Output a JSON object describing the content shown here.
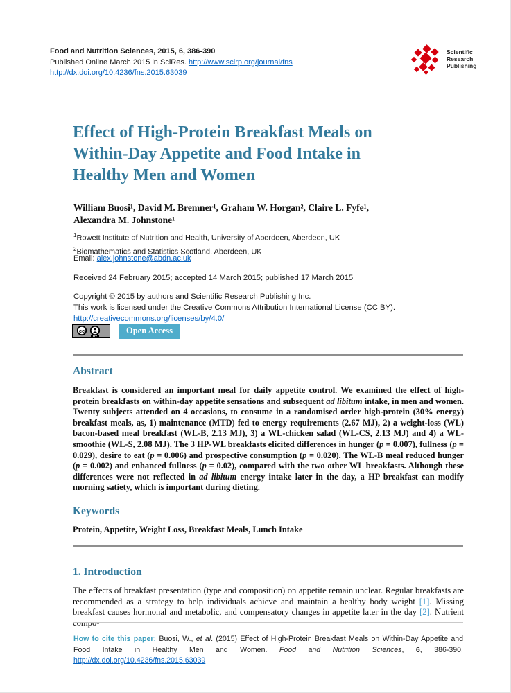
{
  "colors": {
    "teal_heading": "#337A9C",
    "teal_footer_label": "#3B9DBD",
    "link_blue": "#0563C1",
    "reference_blue": "#4A9FD0",
    "logo_red": "#D6000D",
    "open_access_bg": "#4FACCB",
    "rule_gray": "#8F8F8F"
  },
  "header": {
    "journal_line": "Food and Nutrition Sciences, 2015, 6, 386-390",
    "published_prefix": "Published Online March 2015 in SciRes. ",
    "journal_link": "http://www.scirp.org/journal/fns",
    "doi_link": "http://dx.doi.org/10.4236/fns.2015.63039",
    "logo_lines": [
      "Scientific",
      "Research",
      "Publishing"
    ]
  },
  "article": {
    "title_lines": [
      "Effect of High-Protein Breakfast Meals on",
      "Within-Day Appetite and Food Intake in",
      "Healthy Men and Women"
    ],
    "author_lines": [
      "William Buosi¹, David M. Bremner¹, Graham W. Horgan², Claire L. Fyfe¹,",
      "Alexandra M. Johnstone¹"
    ],
    "affiliations": [
      {
        "sup": "1",
        "text": "Rowett Institute of Nutrition and Health, University of Aberdeen, Aberdeen, UK"
      },
      {
        "sup": "2",
        "text": "Biomathematics and Statistics Scotland, Aberdeen, UK"
      }
    ],
    "email_label": "Email: ",
    "email": "alex.johnstone@abdn.ac.uk",
    "dates_line": "Received 24 February 2015; accepted 14 March 2015; published 17 March 2015",
    "copyright_line1": "Copyright © 2015 by authors and Scientific Research Publishing Inc.",
    "copyright_line2": "This work is licensed under the Creative Commons Attribution International License (CC BY).",
    "license_link": "http://creativecommons.org/licenses/by/4.0/",
    "cc_cc": "cc",
    "cc_by": "BY",
    "open_access_label": "Open Access"
  },
  "abstract": {
    "heading": "Abstract",
    "rich": [
      {
        "t": "Breakfast is considered an important meal for daily appetite control. We examined the effect of high-protein breakfasts on within-day appetite sensations and subsequent "
      },
      {
        "t": "ad libitum",
        "i": true
      },
      {
        "t": " intake, in men and women. Twenty subjects attended on 4 occasions, to consume in a randomised order high-protein (30% energy) breakfast meals, as, 1) maintenance (MTD) fed to energy requirements (2.67 MJ), 2) a weight-loss (WL) bacon-based meal breakfast (WL-B, 2.13 MJ), 3) a WL-chicken salad (WL-CS, 2.13 MJ) and 4) a WL-smoothie (WL-S, 2.08 MJ). The 3 HP-WL breakfasts elicited differences in hunger ("
      },
      {
        "t": "p",
        "i": true
      },
      {
        "t": " = 0.007), fullness ("
      },
      {
        "t": "p",
        "i": true
      },
      {
        "t": " = 0.029), desire to eat ("
      },
      {
        "t": "p",
        "i": true
      },
      {
        "t": " = 0.006) and prospective consumption ("
      },
      {
        "t": "p",
        "i": true
      },
      {
        "t": " = 0.020). The WL-B meal reduced hunger ("
      },
      {
        "t": "p",
        "i": true
      },
      {
        "t": " = 0.002) and enhanced fullness ("
      },
      {
        "t": "p",
        "i": true
      },
      {
        "t": " = 0.02), compared with the two other WL breakfasts. Although these differences were not reflected in "
      },
      {
        "t": "ad libitum",
        "i": true
      },
      {
        "t": " energy intake later in the day, a HP breakfast can modify morning satiety, which is important during dieting."
      }
    ]
  },
  "keywords": {
    "heading": "Keywords",
    "text": "Protein, Appetite, Weight Loss, Breakfast Meals, Lunch Intake"
  },
  "introduction": {
    "heading": "1. Introduction",
    "rich": [
      {
        "t": "The effects of breakfast presentation (type and composition) on appetite remain unclear. Regular breakfasts are recommended as a strategy to help individuals achieve and maintain a healthy body weight "
      },
      {
        "t": "[1]",
        "c": "ref"
      },
      {
        "t": ". Missing breakfast causes hormonal and metabolic, and compensatory changes in appetite later in the day "
      },
      {
        "t": "[2]",
        "c": "ref"
      },
      {
        "t": ". Nutrient compo-"
      }
    ]
  },
  "footer": {
    "rich": [
      {
        "t": "How to cite this paper: ",
        "c": "tealf"
      },
      {
        "t": "Buosi, W., "
      },
      {
        "t": "et al",
        "i": true
      },
      {
        "t": ". (2015) Effect of High-Protein Breakfast Meals on Within-Day Appetite and Food Intake in Healthy Men and Women. "
      },
      {
        "t": "Food and Nutrition Sciences",
        "i": true
      },
      {
        "t": ", "
      },
      {
        "t": "6",
        "b": true
      },
      {
        "t": ", 386-390. "
      },
      {
        "t": "http://dx.doi.org/10.4236/fns.2015.63039",
        "link": true
      }
    ]
  }
}
